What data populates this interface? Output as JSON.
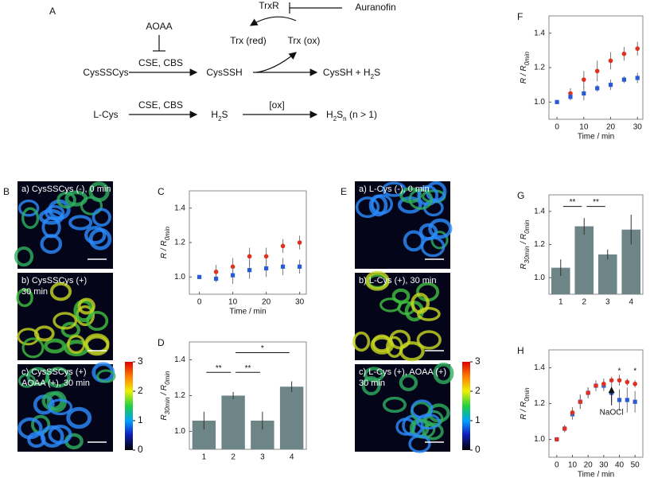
{
  "scheme": {
    "label": "A",
    "items": [
      [
        "AOAA"
      ],
      [
        "TrxR"
      ],
      [
        "Auranofin"
      ],
      [
        "Trx (red)"
      ],
      [
        "Trx (ox)"
      ],
      [
        "CysSSCys"
      ],
      [
        "CSE, CBS"
      ],
      [
        "CysSSH"
      ],
      [
        "CysSH + H",
        "2",
        "S"
      ],
      [
        "L-Cys"
      ],
      [
        "CSE, CBS"
      ],
      [
        "H",
        "2",
        "S"
      ],
      [
        "[ox]"
      ],
      [
        "H",
        "2",
        "S",
        "n",
        " (n > 1)"
      ]
    ]
  },
  "image_panels": [
    {
      "label": "B",
      "captions": [
        [
          "a) CysSSCys (-), 0 min"
        ],
        [
          "b) CysSSCys (+)",
          "30 min"
        ],
        [
          "c) CysSSCys (+)",
          "AOAA (+), 30 min"
        ]
      ]
    },
    {
      "label": "E",
      "captions": [
        [
          "a) L-Cys (-), 0 min"
        ],
        [
          "b) L-Cys (+), 30 min"
        ],
        [
          "c) L-Cys (+), AOAA (+)",
          "30 min"
        ]
      ]
    }
  ],
  "colorbar": {
    "ticks": [
      0,
      1,
      2,
      3
    ]
  },
  "chart_data": [
    {
      "label": "C",
      "type": "scatter",
      "xlabel": "Time / min",
      "ylabel": [
        "R / R",
        "0min"
      ],
      "x": [
        0,
        5,
        10,
        15,
        20,
        25,
        30
      ],
      "xlim": [
        -3,
        32
      ],
      "xticks": [
        0,
        10,
        20,
        30
      ],
      "ylim": [
        0.9,
        1.5
      ],
      "yticks": [
        {
          "value": 1.0,
          "label": "1.0"
        },
        {
          "value": 1.2,
          "label": "1.2"
        },
        {
          "value": 1.4,
          "label": "1.4"
        }
      ],
      "series": [
        {
          "color": "#e0301e",
          "values": [
            null,
            1.03,
            1.06,
            1.12,
            1.12,
            1.18,
            1.2
          ],
          "errors": [
            null,
            0.04,
            0.05,
            0.05,
            0.05,
            0.04,
            0.04
          ]
        },
        {
          "color": "#2a5bd7",
          "values": [
            1.0,
            0.99,
            1.01,
            1.04,
            1.05,
            1.06,
            1.06
          ],
          "errors": [
            0,
            0.02,
            0.05,
            0.05,
            0.05,
            0.05,
            0.04
          ]
        }
      ]
    },
    {
      "label": "D",
      "type": "bar",
      "ylabel": [
        "R",
        "30min",
        " / R",
        "0min"
      ],
      "categories": [
        "1",
        "2",
        "3",
        "4"
      ],
      "values": [
        1.06,
        1.2,
        1.06,
        1.25
      ],
      "errors": [
        0.05,
        0.02,
        0.05,
        0.03
      ],
      "color": "#6e8587",
      "ylim": [
        0.9,
        1.5
      ],
      "yticks": [
        {
          "value": 1.0,
          "label": "1.0"
        },
        {
          "value": 1.2,
          "label": "1.2"
        },
        {
          "value": 1.4,
          "label": "1.4"
        }
      ],
      "annotations": [
        "**",
        "**",
        "*"
      ]
    },
    {
      "label": "F",
      "type": "scatter",
      "xlabel": "Time / min",
      "ylabel": [
        "R / R",
        "0min"
      ],
      "x": [
        0,
        5,
        10,
        15,
        20,
        25,
        30
      ],
      "xlim": [
        -3,
        32
      ],
      "xticks": [
        0,
        10,
        20,
        30
      ],
      "ylim": [
        0.9,
        1.5
      ],
      "yticks": [
        {
          "value": 1.0,
          "label": "1.0"
        },
        {
          "value": 1.2,
          "label": "1.2"
        },
        {
          "value": 1.4,
          "label": "1.4"
        }
      ],
      "series": [
        {
          "color": "#e0301e",
          "values": [
            null,
            1.05,
            1.13,
            1.18,
            1.24,
            1.28,
            1.31
          ],
          "errors": [
            null,
            0.03,
            0.05,
            0.06,
            0.05,
            0.04,
            0.04
          ]
        },
        {
          "color": "#2a5bd7",
          "values": [
            1.0,
            1.03,
            1.05,
            1.08,
            1.1,
            1.13,
            1.14
          ],
          "errors": [
            0,
            0.02,
            0.04,
            0.02,
            0.03,
            0.02,
            0.03
          ]
        }
      ]
    },
    {
      "label": "G",
      "type": "bar",
      "ylabel": [
        "R",
        "30min",
        " / R",
        "0min"
      ],
      "categories": [
        "1",
        "2",
        "3",
        "4"
      ],
      "values": [
        1.06,
        1.31,
        1.14,
        1.29
      ],
      "errors": [
        0.05,
        0.05,
        0.03,
        0.09
      ],
      "color": "#6e8587",
      "ylim": [
        0.9,
        1.5
      ],
      "yticks": [
        {
          "value": 1.0,
          "label": "1.0"
        },
        {
          "value": 1.2,
          "label": "1.2"
        },
        {
          "value": 1.4,
          "label": "1.4"
        }
      ],
      "annotations": [
        "**",
        "**"
      ]
    },
    {
      "label": "H",
      "type": "scatter",
      "xlabel": "Time / min",
      "ylabel": [
        "R / R",
        "0min"
      ],
      "x": [
        0,
        5,
        10,
        15,
        20,
        25,
        30,
        35,
        40,
        45,
        50
      ],
      "xlim": [
        -5,
        55
      ],
      "xticks": [
        0,
        10,
        20,
        30,
        40,
        50
      ],
      "ylim": [
        0.9,
        1.5
      ],
      "yticks": [
        {
          "value": 1.0,
          "label": "1.0"
        },
        {
          "value": 1.2,
          "label": "1.2"
        },
        {
          "value": 1.4,
          "label": "1.4"
        }
      ],
      "series": [
        {
          "color": "#2a5bd7",
          "values": [
            1.0,
            1.06,
            1.14,
            1.21,
            1.26,
            1.3,
            1.3,
            1.26,
            1.22,
            1.22,
            1.21
          ],
          "errors": [
            0,
            0.02,
            0.03,
            0.04,
            0.03,
            0.03,
            0.03,
            0.05,
            0.06,
            0.07,
            0.06
          ]
        },
        {
          "color": "#e0301e",
          "values": [
            1.0,
            1.06,
            1.15,
            1.21,
            1.26,
            1.3,
            1.31,
            1.33,
            1.33,
            1.32,
            1.31
          ],
          "errors": [
            0,
            0.02,
            0.03,
            0.04,
            0.03,
            0.03,
            0.03,
            0.02,
            0.03,
            0.02,
            0.02
          ]
        }
      ],
      "annotations": [
        "*",
        "*",
        "NaOCl"
      ]
    }
  ]
}
